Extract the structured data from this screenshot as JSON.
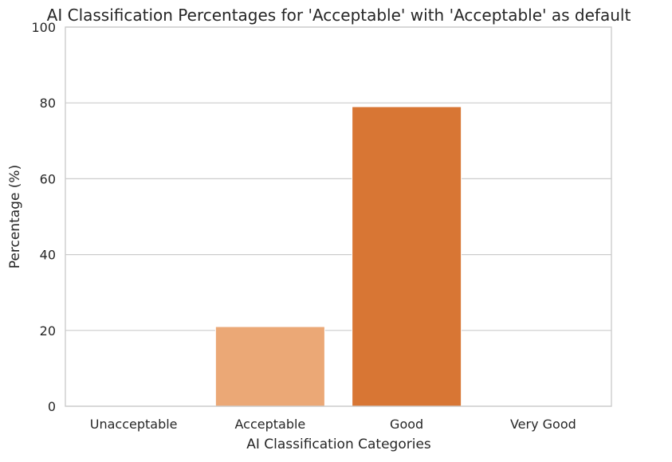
{
  "chart_data": {
    "type": "bar",
    "title": "AI Classification Percentages for 'Acceptable' with 'Acceptable' as default",
    "xlabel": "AI Classification Categories",
    "ylabel": "Percentage (%)",
    "categories": [
      "Unacceptable",
      "Acceptable",
      "Good",
      "Very Good"
    ],
    "values": [
      0,
      21,
      79,
      0
    ],
    "bar_colors": [
      "#fdd0a2",
      "#eba876",
      "#d87634",
      "#a63603"
    ],
    "ylim": [
      0,
      100
    ],
    "yticks": [
      0,
      20,
      40,
      60,
      80,
      100
    ],
    "grid": "horizontal",
    "legend": "none"
  }
}
